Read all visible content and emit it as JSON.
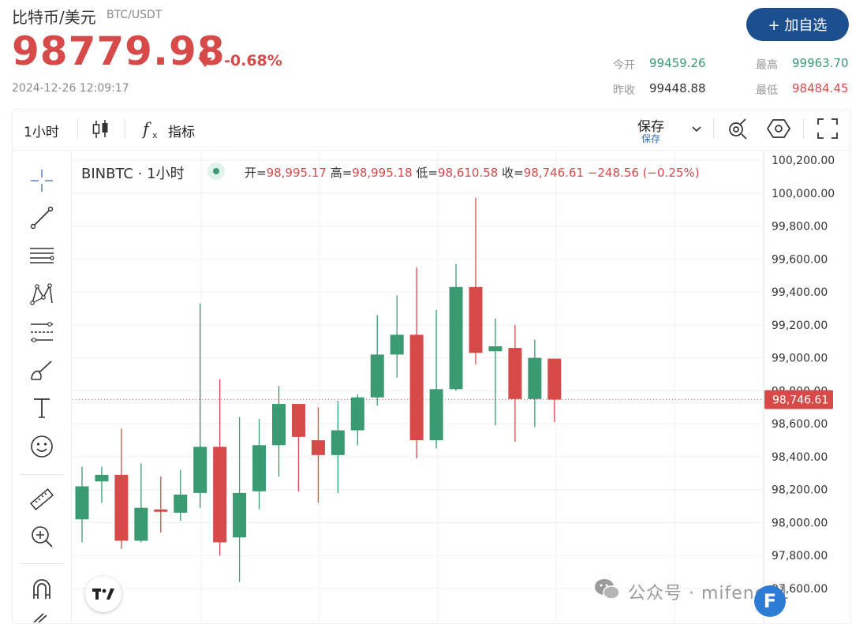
{
  "header": {
    "pair_name": "比特币/美元",
    "pair_code": "BTC/USDT",
    "price": "98779.98",
    "change_pct": "-0.68%",
    "timestamp": "2024-12-26 12:09:17",
    "watch_button": "+ 加自选"
  },
  "stats": {
    "open_label": "今开",
    "open_value": "99459.26",
    "prev_close_label": "昨收",
    "prev_close_value": "99448.88",
    "high_label": "最高",
    "high_value": "99963.70",
    "low_label": "最低",
    "low_value": "98484.45"
  },
  "toolbar": {
    "interval": "1小时",
    "indicators": "指标",
    "save": "保存",
    "save_sub": "保存"
  },
  "legend": {
    "symbol": "BINBTC · 1小时",
    "open_label": "开=",
    "open": "98,995.17",
    "high_label": "高=",
    "high": "98,995.18",
    "low_label": "低=",
    "low": "98,610.58",
    "close_label": "收=",
    "close": "98,746.61",
    "change": "−248.56 (−0.25%)"
  },
  "watermark": {
    "text": "公众号 · mifeng01"
  },
  "colors": {
    "up": "#3a9a72",
    "down": "#d64a4a",
    "accent": "#1b4f8e"
  },
  "icons": [
    "crosshair-icon",
    "trend-line-icon",
    "horizontal-lines-icon",
    "pattern-icon",
    "fib-icon",
    "brush-icon",
    "text-icon",
    "emoji-icon",
    "ruler-icon",
    "zoom-in-icon",
    "magnet-icon",
    "candles-icon",
    "fx-icon",
    "chevron-down-icon",
    "settings-icon",
    "hexagon-icon",
    "fullscreen-icon"
  ],
  "chart_data": {
    "type": "candlestick",
    "interval": "1小时",
    "ylim": [
      97580,
      100220
    ],
    "y_ticks": [
      "100,200.00",
      "100,000.00",
      "99,800.00",
      "99,600.00",
      "99,400.00",
      "99,200.00",
      "99,000.00",
      "98,800.00",
      "98,600.00",
      "98,400.00",
      "98,200.00",
      "98,000.00",
      "97,800.00",
      "97,600.00"
    ],
    "last_price_label": "98,746.61",
    "last_price": 98746.61,
    "candles": [
      {
        "o": 98020,
        "h": 98340,
        "l": 97880,
        "c": 98220
      },
      {
        "o": 98250,
        "h": 98340,
        "l": 98120,
        "c": 98290
      },
      {
        "o": 98290,
        "h": 98570,
        "l": 97840,
        "c": 97890
      },
      {
        "o": 97890,
        "h": 98360,
        "l": 97880,
        "c": 98090
      },
      {
        "o": 98080,
        "h": 98280,
        "l": 97940,
        "c": 98070
      },
      {
        "o": 98060,
        "h": 98320,
        "l": 98010,
        "c": 98170
      },
      {
        "o": 98180,
        "h": 99330,
        "l": 98090,
        "c": 98460
      },
      {
        "o": 98460,
        "h": 98870,
        "l": 97800,
        "c": 97880
      },
      {
        "o": 97910,
        "h": 98640,
        "l": 97640,
        "c": 98180
      },
      {
        "o": 98190,
        "h": 98630,
        "l": 98080,
        "c": 98470
      },
      {
        "o": 98470,
        "h": 98830,
        "l": 98280,
        "c": 98720
      },
      {
        "o": 98720,
        "h": 98700,
        "l": 98190,
        "c": 98520
      },
      {
        "o": 98500,
        "h": 98700,
        "l": 98120,
        "c": 98410
      },
      {
        "o": 98410,
        "h": 98740,
        "l": 98180,
        "c": 98560
      },
      {
        "o": 98560,
        "h": 98780,
        "l": 98470,
        "c": 98760
      },
      {
        "o": 98760,
        "h": 99260,
        "l": 98710,
        "c": 99020
      },
      {
        "o": 99020,
        "h": 99380,
        "l": 98880,
        "c": 99140
      },
      {
        "o": 99140,
        "h": 99550,
        "l": 98390,
        "c": 98500
      },
      {
        "o": 98500,
        "h": 99290,
        "l": 98450,
        "c": 98810
      },
      {
        "o": 98810,
        "h": 99570,
        "l": 98800,
        "c": 99430
      },
      {
        "o": 99430,
        "h": 99970,
        "l": 98960,
        "c": 99030
      },
      {
        "o": 99040,
        "h": 99240,
        "l": 98590,
        "c": 99070
      },
      {
        "o": 99060,
        "h": 99200,
        "l": 98490,
        "c": 98750
      },
      {
        "o": 98750,
        "h": 99110,
        "l": 98580,
        "c": 99000
      },
      {
        "o": 98995.17,
        "h": 98995.18,
        "l": 98610.58,
        "c": 98746.61
      }
    ]
  }
}
